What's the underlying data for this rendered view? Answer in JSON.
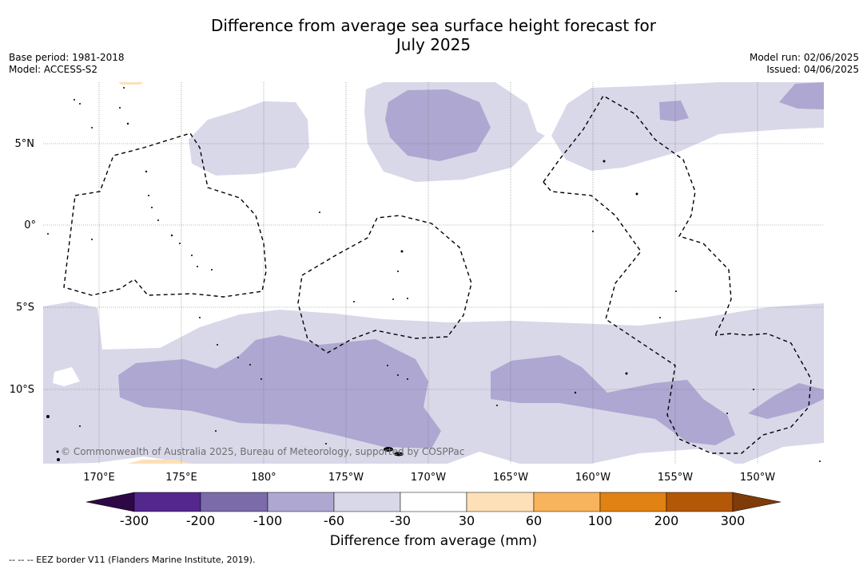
{
  "title_line1": "Difference from average sea surface height forecast for",
  "title_line2": "July 2025",
  "meta": {
    "base_period": "Base period: 1981-2018",
    "model": "Model: ACCESS-S2",
    "model_run": "Model run: 02/06/2025",
    "issued": "Issued: 04/06/2025"
  },
  "map": {
    "lat_labels": [
      "5°N",
      "0°",
      "5°S",
      "10°S"
    ],
    "lon_labels": [
      "170°E",
      "175°E",
      "180°",
      "175°W",
      "170°W",
      "165°W",
      "160°W",
      "155°W",
      "150°W"
    ],
    "copyright": "© Commonwealth of Australia 2025, Bureau of Meteorology, supported by COSPPac"
  },
  "colorbar": {
    "title": "Difference from average (mm)",
    "tick_labels": [
      "-300",
      "-200",
      "-100",
      "-60",
      "-30",
      "30",
      "60",
      "100",
      "200",
      "300"
    ],
    "colors": {
      "under": "#2d0845",
      "bins": [
        "#54278f",
        "#7b6ba9",
        "#aea7d1",
        "#d8d8e9",
        "#ffffff",
        "#fde0b7",
        "#f8b45c",
        "#e08214",
        "#b35806"
      ],
      "over": "#7f3b08"
    }
  },
  "footnote": "--  --  -- EEZ border V11 (Flanders Marine Institute, 2019)."
}
